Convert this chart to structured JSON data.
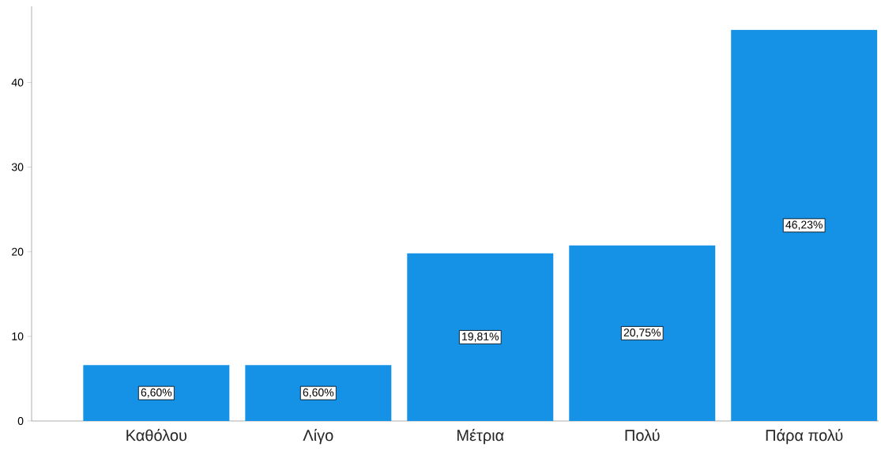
{
  "chart_data": {
    "type": "bar",
    "categories": [
      "Καθόλου",
      "Λίγο",
      "Μέτρια",
      "Πολύ",
      "Πάρα πολύ"
    ],
    "values": [
      6.6,
      6.6,
      19.81,
      20.75,
      46.23
    ],
    "value_labels": [
      "6,60%",
      "6,60%",
      "19,81%",
      "20,75%",
      "46,23%"
    ],
    "color": "#1591e6",
    "ylim": [
      0,
      49
    ],
    "yticks": [
      0,
      10,
      20,
      30,
      40
    ]
  }
}
